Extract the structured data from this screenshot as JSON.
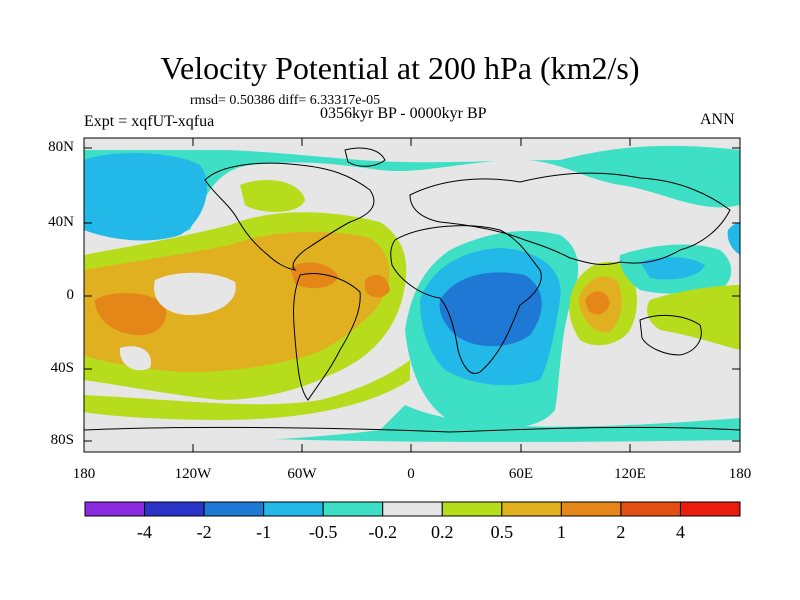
{
  "title": "Velocity Potential at 200 hPa (km2/s)",
  "stats": "rmsd= 0.50386 diff= 6.33317e-05",
  "experiment": "Expt = xqfUT-xqfua",
  "period": "0356kyr BP - 0000kyr BP",
  "season": "ANN",
  "axes": {
    "lat_labels": [
      "80N",
      "40N",
      "0",
      "40S",
      "80S"
    ],
    "lon_labels": [
      "180",
      "120W",
      "60W",
      "0",
      "60E",
      "120E",
      "180"
    ]
  },
  "colorbar": {
    "colors": [
      "#8a2be2",
      "#2b34c9",
      "#1f78d4",
      "#22b8e8",
      "#3de0c4",
      "#e6e6e6",
      "#b7dc1c",
      "#e0b020",
      "#e58718",
      "#e34f12",
      "#e81d0e"
    ],
    "labels": [
      "-4",
      "-2",
      "-1",
      "-0.5",
      "-0.2",
      "0.2",
      "0.5",
      "1",
      "2",
      "4"
    ]
  },
  "palette": {
    "background": "#e6e6e6",
    "neg_light": "#3de0c4",
    "neg_mid": "#22b8e8",
    "neg_strong": "#1f78d4",
    "pos_light": "#b7dc1c",
    "pos_mid": "#e0b020",
    "pos_strong": "#e58718",
    "coast": "#000000"
  }
}
